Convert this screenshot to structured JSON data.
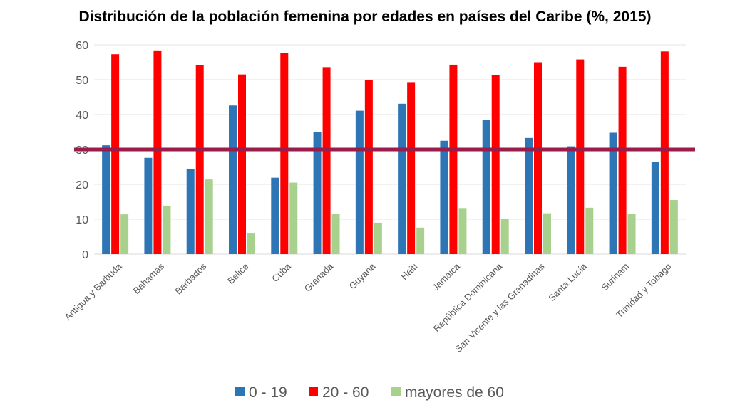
{
  "chart_data": {
    "type": "bar",
    "title": "Distribución de la población femenina por edades en países del Caribe (%, 2015)",
    "xlabel": "",
    "ylabel": "",
    "ylim": [
      0,
      60
    ],
    "yticks": [
      0,
      10,
      20,
      30,
      40,
      50,
      60
    ],
    "grid": true,
    "legend_position": "bottom",
    "categories": [
      "Antigua y Barbuda",
      "Bahamas",
      "Barbados",
      "Belice",
      "Cuba",
      "Granada",
      "Guyana",
      "Haití",
      "Jamaica",
      "República Dominicana",
      "San Vicente y las Granadinas",
      "Santa Lucía",
      "Surinam",
      "Trinidad y Tobago"
    ],
    "series": [
      {
        "name": "0 - 19",
        "color": "#2e75b6",
        "values": [
          31.2,
          27.6,
          24.3,
          42.6,
          21.9,
          34.9,
          41.1,
          43.1,
          32.5,
          38.5,
          33.3,
          30.9,
          34.8,
          26.4
        ]
      },
      {
        "name": "20 - 60",
        "color": "#ff0000",
        "values": [
          57.3,
          58.4,
          54.2,
          51.5,
          57.6,
          53.6,
          50.0,
          49.3,
          54.3,
          51.4,
          55.0,
          55.8,
          53.7,
          58.1
        ]
      },
      {
        "name": "mayores de 60",
        "color": "#a9d18e",
        "values": [
          11.4,
          13.9,
          21.4,
          5.9,
          20.5,
          11.5,
          9.0,
          7.6,
          13.2,
          10.1,
          11.7,
          13.3,
          11.5,
          15.5
        ]
      }
    ],
    "reference_line": {
      "value": 30,
      "color": "#9b1b4b"
    }
  }
}
